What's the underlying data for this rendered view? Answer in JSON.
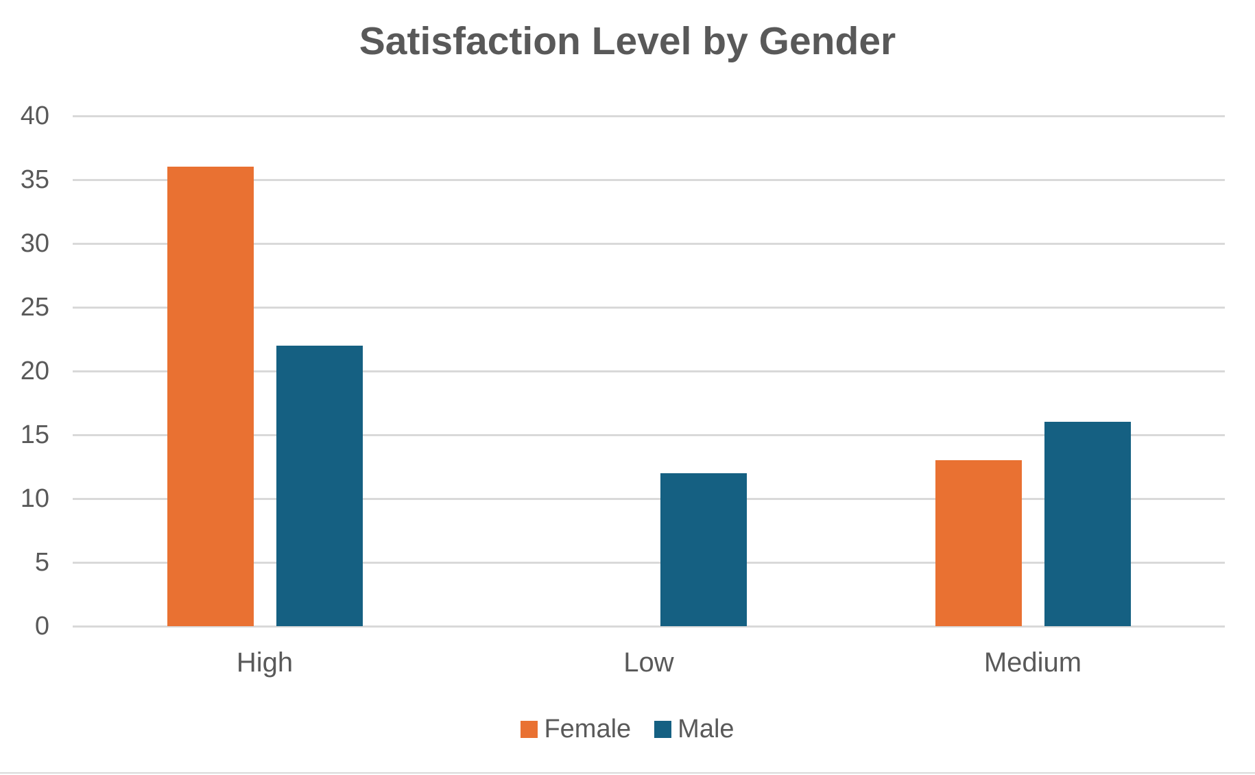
{
  "chart_data": {
    "type": "bar",
    "title": "Satisfaction Level by Gender",
    "categories": [
      "High",
      "Low",
      "Medium"
    ],
    "series": [
      {
        "name": "Female",
        "color": "#E97132",
        "values": [
          36,
          0,
          13
        ]
      },
      {
        "name": "Male",
        "color": "#156082",
        "values": [
          22,
          12,
          16
        ]
      }
    ],
    "xlabel": "",
    "ylabel": "",
    "ylim": [
      0,
      40
    ],
    "ytick_step": 5,
    "grid": true,
    "legend_position": "bottom",
    "colors": {
      "text": "#595959",
      "gridline": "#D9D9D9",
      "background": "#FFFFFF",
      "bottom_border": "#D9D9D9"
    }
  }
}
